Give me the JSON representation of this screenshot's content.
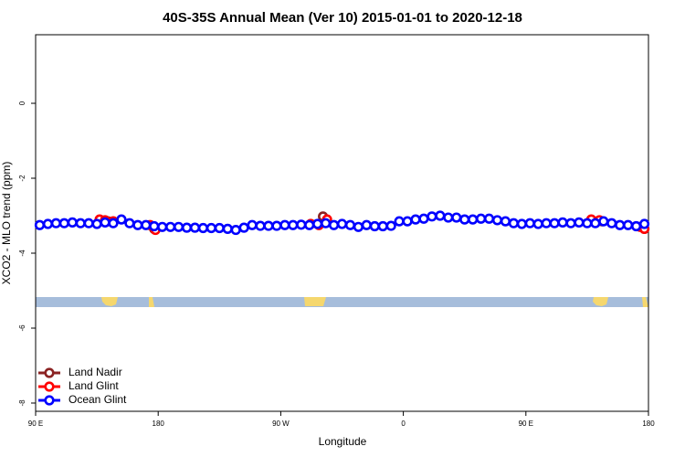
{
  "chart_data": {
    "type": "line",
    "title": "40S-35S Annual Mean (Ver 10)   2015-01-01 to 2020-12-18",
    "xlabel": "Longitude",
    "ylabel": "XCO2 - MLO trend (ppm)",
    "xlim": [
      90,
      540
    ],
    "ylim": [
      -8.22,
      1.83
    ],
    "xticks": [
      {
        "value": 90,
        "label": "90 E"
      },
      180,
      {
        "value": 270,
        "label": "90 W"
      },
      {
        "value": 360,
        "label": "0"
      },
      {
        "value": 450,
        "label": "90 E"
      },
      {
        "value": 540,
        "label": "180"
      }
    ],
    "yticks": [
      0,
      -2,
      -4,
      -6,
      -8
    ],
    "legend": "bottom-left",
    "series": [
      {
        "name": "Land Nadir",
        "color": "#8b2323",
        "x": [
          143,
          177,
          298,
          301,
          506,
          537
        ],
        "values": [
          -3.15,
          -3.35,
          -3.22,
          -3.02,
          -3.15,
          -3.35
        ]
      },
      {
        "name": "Land Glint",
        "color": "#ff0000",
        "x": [
          137,
          141,
          147,
          174,
          178,
          292,
          298,
          304,
          498,
          504,
          534,
          537
        ],
        "values": [
          -3.1,
          -3.12,
          -3.15,
          -3.25,
          -3.38,
          -3.22,
          -3.25,
          -3.1,
          -3.1,
          -3.12,
          -3.3,
          -3.35
        ]
      },
      {
        "name": "Ocean Glint",
        "color": "#0000ff",
        "x": [
          93,
          99,
          105,
          111,
          117,
          123,
          129,
          135,
          141,
          147,
          153,
          159,
          165,
          171,
          177,
          183,
          189,
          195,
          201,
          207,
          213,
          219,
          225,
          231,
          237,
          243,
          249,
          255,
          261,
          267,
          273,
          279,
          285,
          291,
          297,
          303,
          309,
          315,
          321,
          327,
          333,
          339,
          345,
          351,
          357,
          363,
          369,
          375,
          381,
          387,
          393,
          399,
          405,
          411,
          417,
          423,
          429,
          435,
          441,
          447,
          453,
          459,
          465,
          471,
          477,
          483,
          489,
          495,
          501,
          507,
          513,
          519,
          525,
          531,
          537
        ],
        "values": [
          -3.25,
          -3.22,
          -3.2,
          -3.2,
          -3.18,
          -3.2,
          -3.2,
          -3.22,
          -3.18,
          -3.2,
          -3.1,
          -3.2,
          -3.25,
          -3.25,
          -3.28,
          -3.3,
          -3.3,
          -3.3,
          -3.32,
          -3.32,
          -3.33,
          -3.33,
          -3.33,
          -3.35,
          -3.38,
          -3.32,
          -3.25,
          -3.27,
          -3.27,
          -3.27,
          -3.25,
          -3.25,
          -3.24,
          -3.25,
          -3.22,
          -3.2,
          -3.25,
          -3.22,
          -3.25,
          -3.3,
          -3.25,
          -3.28,
          -3.28,
          -3.27,
          -3.15,
          -3.15,
          -3.1,
          -3.08,
          -3.02,
          -3.0,
          -3.05,
          -3.05,
          -3.1,
          -3.1,
          -3.08,
          -3.08,
          -3.12,
          -3.15,
          -3.2,
          -3.22,
          -3.2,
          -3.22,
          -3.2,
          -3.2,
          -3.18,
          -3.2,
          -3.18,
          -3.2,
          -3.2,
          -3.15,
          -3.2,
          -3.25,
          -3.25,
          -3.28,
          -3.22
        ]
      }
    ]
  }
}
